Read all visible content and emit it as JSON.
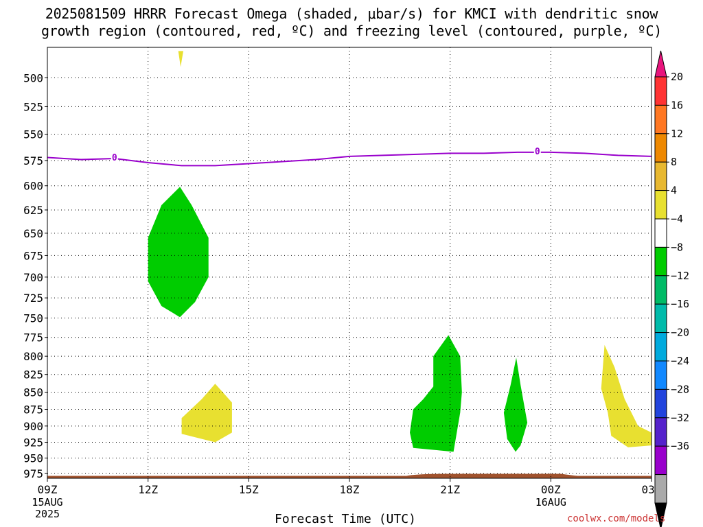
{
  "title_line1": "2025081509 HRRR Forecast Omega (shaded, μbar/s) for KMCI with dendritic snow",
  "title_line2": "growth region (contoured, red, ºC) and freezing level (contoured, purple, ºC)",
  "credit": "coolwx.com/models",
  "chart_data": {
    "type": "contour",
    "x_unit": "hours from 2025-08-15 09Z",
    "xlabel": "Forecast Time (UTC)",
    "xlim": [
      0,
      18
    ],
    "x_ticks": [
      {
        "x": 0,
        "label": "09Z",
        "sub1": "15AUG",
        "sub2": "2025"
      },
      {
        "x": 3,
        "label": "12Z",
        "sub1": "",
        "sub2": ""
      },
      {
        "x": 6,
        "label": "15Z",
        "sub1": "",
        "sub2": ""
      },
      {
        "x": 9,
        "label": "18Z",
        "sub1": "",
        "sub2": ""
      },
      {
        "x": 12,
        "label": "21Z",
        "sub1": "",
        "sub2": ""
      },
      {
        "x": 15,
        "label": "00Z",
        "sub1": "16AUG",
        "sub2": ""
      },
      {
        "x": 18,
        "label": "03Z",
        "sub1": "",
        "sub2": ""
      }
    ],
    "y_unit": "hPa",
    "ylim": [
      983,
      475
    ],
    "y_scale": "log",
    "y_ticks": [
      500,
      525,
      550,
      575,
      600,
      625,
      650,
      675,
      700,
      725,
      750,
      775,
      800,
      825,
      850,
      875,
      900,
      925,
      950,
      975
    ],
    "grid": "dotted",
    "colorbar": {
      "ticks": [
        "20",
        "16",
        "12",
        "8",
        "4",
        "−4",
        "−8",
        "−12",
        "−16",
        "−20",
        "−24",
        "−28",
        "−32",
        "−36"
      ],
      "colors": [
        "#e8147c",
        "#ff3333",
        "#ff7722",
        "#ee8800",
        "#e8b830",
        "#e8e030",
        "#ffffff",
        "#00cc00",
        "#00bb66",
        "#00bbaa",
        "#00aadd",
        "#1188ff",
        "#2244dd",
        "#5522cc",
        "#9900cc",
        "#aaaaaa",
        "#000000"
      ]
    },
    "freezing_level": {
      "label": "0",
      "color": "#9900cc",
      "points": [
        [
          0,
          572
        ],
        [
          1,
          574
        ],
        [
          2,
          573
        ],
        [
          3,
          577
        ],
        [
          4,
          580
        ],
        [
          5,
          580
        ],
        [
          6,
          578
        ],
        [
          7,
          576
        ],
        [
          8,
          574
        ],
        [
          9,
          571
        ],
        [
          10,
          570
        ],
        [
          11,
          569
        ],
        [
          12,
          568
        ],
        [
          13,
          568
        ],
        [
          14,
          567
        ],
        [
          15,
          567
        ],
        [
          16,
          568
        ],
        [
          17,
          570
        ],
        [
          18,
          571
        ]
      ]
    },
    "omega_regions": [
      {
        "color": "#e8e030",
        "points": [
          [
            3.9,
            478
          ],
          [
            4.05,
            478
          ],
          [
            3.97,
            491
          ]
        ]
      },
      {
        "color": "#00cc00",
        "points": [
          [
            3.95,
            601
          ],
          [
            4.3,
            620
          ],
          [
            4.8,
            655
          ],
          [
            4.8,
            700
          ],
          [
            4.4,
            730
          ],
          [
            3.95,
            749
          ],
          [
            3.4,
            735
          ],
          [
            3.0,
            705
          ],
          [
            3.0,
            655
          ],
          [
            3.4,
            620
          ]
        ]
      },
      {
        "color": "#e8e030",
        "points": [
          [
            4.0,
            888
          ],
          [
            4.6,
            860
          ],
          [
            5.0,
            838
          ],
          [
            5.5,
            865
          ],
          [
            5.5,
            910
          ],
          [
            5.0,
            925
          ],
          [
            4.0,
            912
          ]
        ]
      },
      {
        "color": "#00cc00",
        "points": [
          [
            11.95,
            772
          ],
          [
            12.3,
            800
          ],
          [
            12.35,
            850
          ],
          [
            12.3,
            880
          ],
          [
            12.1,
            940
          ],
          [
            11.7,
            938
          ],
          [
            10.9,
            934
          ],
          [
            10.8,
            910
          ],
          [
            10.9,
            875
          ],
          [
            11.2,
            860
          ],
          [
            11.5,
            842
          ],
          [
            11.5,
            800
          ]
        ]
      },
      {
        "color": "#00cc00",
        "points": [
          [
            13.97,
            802
          ],
          [
            14.1,
            840
          ],
          [
            14.3,
            895
          ],
          [
            14.1,
            930
          ],
          [
            13.95,
            940
          ],
          [
            13.7,
            920
          ],
          [
            13.6,
            880
          ],
          [
            13.8,
            840
          ]
        ]
      },
      {
        "color": "#e8e030",
        "points": [
          [
            16.6,
            785
          ],
          [
            16.9,
            815
          ],
          [
            17.2,
            860
          ],
          [
            17.6,
            900
          ],
          [
            18.0,
            910
          ],
          [
            18.0,
            930
          ],
          [
            17.3,
            933
          ],
          [
            16.8,
            915
          ],
          [
            16.7,
            880
          ],
          [
            16.5,
            845
          ]
        ]
      }
    ],
    "terrain": {
      "color": "#a0522d",
      "top_hpa": 979
    }
  }
}
